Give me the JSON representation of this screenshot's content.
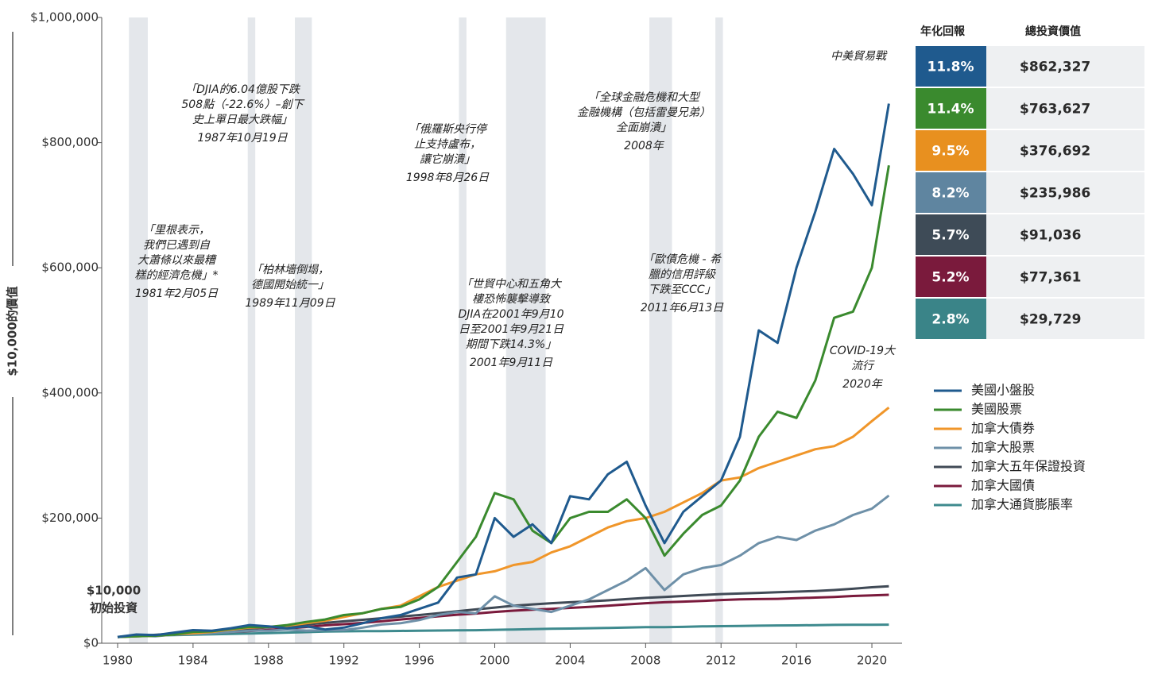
{
  "chart_data": {
    "type": "line",
    "y_label": "$10,000的價值",
    "start_label": [
      "$10,000",
      "初始投資"
    ],
    "xlim": [
      1980,
      2021.6
    ],
    "xticks": [
      1980,
      1984,
      1988,
      1992,
      1996,
      2000,
      2004,
      2008,
      2012,
      2016,
      2020
    ],
    "ylim": [
      0,
      1000000
    ],
    "yticks": [
      {
        "value": 0,
        "label": "$0"
      },
      {
        "value": 200000,
        "label": "$200,000"
      },
      {
        "value": 400000,
        "label": "$400,000"
      },
      {
        "value": 600000,
        "label": "$600,000"
      },
      {
        "value": 800000,
        "label": "$800,000"
      },
      {
        "value": 1000000,
        "label": "$1,000,000"
      }
    ],
    "grid": false,
    "shaded_periods": [
      {
        "start": 1980.6,
        "end": 1981.6
      },
      {
        "start": 1986.9,
        "end": 1987.3
      },
      {
        "start": 1989.4,
        "end": 1990.3
      },
      {
        "start": 1998.1,
        "end": 1998.5
      },
      {
        "start": 2000.6,
        "end": 2002.7
      },
      {
        "start": 2008.2,
        "end": 2009.4
      },
      {
        "start": 2011.7,
        "end": 2012.1
      }
    ],
    "x": [
      1980,
      1981,
      1982,
      1983,
      1984,
      1985,
      1986,
      1987,
      1988,
      1989,
      1990,
      1991,
      1992,
      1993,
      1994,
      1995,
      1996,
      1997,
      1998,
      1999,
      2000,
      2001,
      2002,
      2003,
      2004,
      2005,
      2006,
      2007,
      2008,
      2009,
      2010,
      2011,
      2012,
      2013,
      2014,
      2015,
      2016,
      2017,
      2018,
      2019,
      2020,
      2020.9
    ],
    "series": [
      {
        "name": "美國小盤股",
        "color": "#1f5a8e",
        "values": [
          10000,
          14000,
          13000,
          17000,
          21000,
          20000,
          24000,
          29000,
          27000,
          24000,
          27000,
          22000,
          25000,
          32000,
          40000,
          45000,
          55000,
          65000,
          105000,
          110000,
          200000,
          170000,
          190000,
          160000,
          235000,
          230000,
          270000,
          290000,
          220000,
          160000,
          210000,
          235000,
          260000,
          330000,
          500000,
          480000,
          600000,
          690000,
          790000,
          750000,
          700000,
          862327
        ]
      },
      {
        "name": "美國股票",
        "color": "#3a8a2e",
        "values": [
          10000,
          11000,
          12000,
          14000,
          18000,
          19000,
          23000,
          26000,
          26000,
          29000,
          34000,
          38000,
          45000,
          48000,
          55000,
          58000,
          70000,
          90000,
          130000,
          170000,
          240000,
          230000,
          180000,
          160000,
          200000,
          210000,
          210000,
          230000,
          200000,
          140000,
          175000,
          205000,
          220000,
          260000,
          330000,
          370000,
          360000,
          420000,
          520000,
          530000,
          600000,
          763627
        ]
      },
      {
        "name": "加拿大債券",
        "color": "#f0962a",
        "values": [
          10000,
          11000,
          12000,
          14000,
          16000,
          18000,
          22000,
          25000,
          26000,
          28000,
          32000,
          36000,
          42000,
          48000,
          55000,
          60000,
          75000,
          90000,
          100000,
          110000,
          115000,
          125000,
          130000,
          145000,
          155000,
          170000,
          185000,
          195000,
          200000,
          210000,
          225000,
          240000,
          260000,
          265000,
          280000,
          290000,
          300000,
          310000,
          315000,
          330000,
          355000,
          376692
        ]
      },
      {
        "name": "加拿大股票",
        "color": "#6e90a8",
        "values": [
          10000,
          12000,
          11000,
          14000,
          15000,
          16000,
          18000,
          20000,
          20000,
          22000,
          20000,
          21000,
          21000,
          25000,
          30000,
          32000,
          37000,
          45000,
          50000,
          48000,
          75000,
          60000,
          55000,
          50000,
          60000,
          70000,
          85000,
          100000,
          120000,
          85000,
          110000,
          120000,
          125000,
          140000,
          160000,
          170000,
          165000,
          180000,
          190000,
          205000,
          215000,
          235986
        ]
      },
      {
        "name": "加拿大五年保證投資",
        "color": "#404a56",
        "values": [
          10000,
          11600,
          13400,
          15300,
          17200,
          19200,
          21200,
          23300,
          25400,
          27600,
          30000,
          32500,
          35000,
          37500,
          40000,
          42500,
          45000,
          48000,
          51000,
          54000,
          57000,
          60000,
          62000,
          64000,
          65500,
          67000,
          68500,
          70500,
          72500,
          74000,
          75500,
          77000,
          78500,
          79500,
          80500,
          81500,
          82500,
          83500,
          85000,
          87000,
          89500,
          91036
        ]
      },
      {
        "name": "加拿大國債",
        "color": "#7a1a3c",
        "values": [
          10000,
          11500,
          13000,
          14200,
          15500,
          16800,
          18200,
          19600,
          21200,
          23500,
          26000,
          28500,
          30500,
          32500,
          35000,
          38000,
          40500,
          43000,
          45500,
          47500,
          50000,
          52000,
          53500,
          55000,
          56500,
          58000,
          60000,
          62000,
          64000,
          65500,
          66500,
          67500,
          69000,
          70000,
          70500,
          71000,
          72000,
          73000,
          74000,
          75500,
          76500,
          77361
        ]
      },
      {
        "name": "加拿大通貨膨脹率",
        "color": "#3e8a8e",
        "values": [
          10000,
          11200,
          12400,
          13100,
          13700,
          14300,
          14900,
          15500,
          16200,
          17000,
          17800,
          18700,
          19000,
          19300,
          19300,
          19700,
          20000,
          20300,
          20500,
          20800,
          21400,
          22000,
          22500,
          23100,
          23500,
          24000,
          24500,
          25000,
          25600,
          25700,
          26200,
          26900,
          27300,
          27600,
          28100,
          28400,
          28500,
          28900,
          29300,
          29500,
          29600,
          29729
        ]
      }
    ],
    "annotations": [
      {
        "lines": [
          "「里根表示，",
          "我們已遇到自",
          "大蕭條以來最糟",
          "糕的經濟危機」*"
        ],
        "date": "1981年2月05日"
      },
      {
        "lines": [
          "「DJIA的6.04億股下跌",
          "508點（-22.6%）–創下",
          "史上單日最大跌幅」"
        ],
        "date": "1987年10月19日"
      },
      {
        "lines": [
          "「柏林墻倒塌，",
          "德國開始統一」"
        ],
        "date": "1989年11月09日"
      },
      {
        "lines": [
          "「俄羅斯央行停",
          "止支持盧布，",
          "讓它崩潰」"
        ],
        "date": "1998年8月26日"
      },
      {
        "lines": [
          "「世貿中心和五角大",
          "樓恐怖襲擊導致",
          "DJIA在2001年9月10",
          "日至2001年9月21日",
          "期間下跌14.3%」"
        ],
        "date": "2001年9月11日"
      },
      {
        "lines": [
          "「全球金融危機和大型",
          "金融機構（包括雷曼兄弟）",
          "全面崩潰」"
        ],
        "date": "2008年"
      },
      {
        "lines": [
          "「歐債危機 - 希",
          "臘的信用評級",
          "下跌至CCC」"
        ],
        "date": "2011年6月13日"
      },
      {
        "lines": [
          "中美貿易戰"
        ]
      },
      {
        "lines": [
          "COVID-19大",
          "流行"
        ],
        "date": "2020年"
      }
    ]
  },
  "summary_table": {
    "headers": [
      "年化回報",
      "總投資價值"
    ],
    "rows": [
      {
        "rate": "11.8%",
        "value": "$862,327",
        "color": "#1f5a8e"
      },
      {
        "rate": "11.4%",
        "value": "$763,627",
        "color": "#3a8a2e"
      },
      {
        "rate": "9.5%",
        "value": "$376,692",
        "color": "#e8901f"
      },
      {
        "rate": "8.2%",
        "value": "$235,986",
        "color": "#5f85a0"
      },
      {
        "rate": "5.7%",
        "value": "$91,036",
        "color": "#3e4b57"
      },
      {
        "rate": "5.2%",
        "value": "$77,361",
        "color": "#7a1a3c"
      },
      {
        "rate": "2.8%",
        "value": "$29,729",
        "color": "#3a8488"
      }
    ]
  }
}
